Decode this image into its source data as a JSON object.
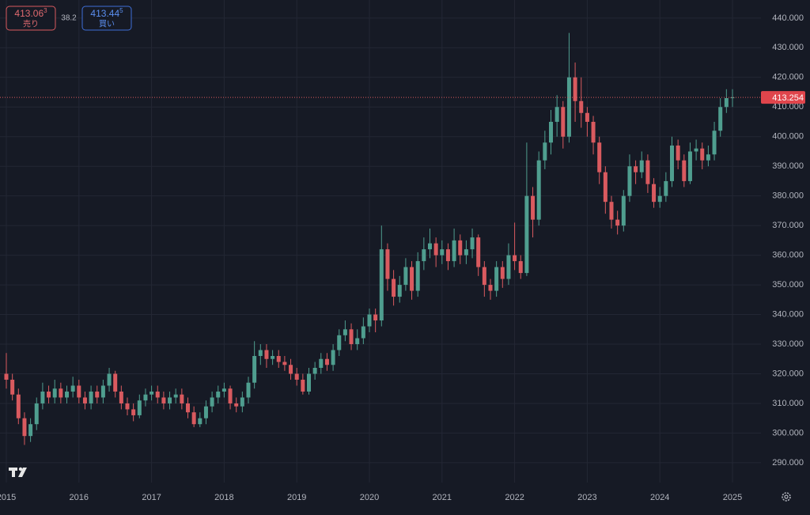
{
  "chart_data": {
    "type": "candlestick",
    "categories": [
      "2015",
      null,
      null,
      null,
      null,
      null,
      null,
      null,
      null,
      null,
      null,
      null,
      "2016",
      null,
      null,
      null,
      null,
      null,
      null,
      null,
      null,
      null,
      null,
      null,
      "2017",
      null,
      null,
      null,
      null,
      null,
      null,
      null,
      null,
      null,
      null,
      null,
      "2018",
      null,
      null,
      null,
      null,
      null,
      null,
      null,
      null,
      null,
      null,
      null,
      "2019",
      null,
      null,
      null,
      null,
      null,
      null,
      null,
      null,
      null,
      null,
      null,
      "2020",
      null,
      null,
      null,
      null,
      null,
      null,
      null,
      null,
      null,
      null,
      null,
      "2021",
      null,
      null,
      null,
      null,
      null,
      null,
      null,
      null,
      null,
      null,
      null,
      "2022",
      null,
      null,
      null,
      null,
      null,
      null,
      null,
      null,
      null,
      null,
      null,
      "2023",
      null,
      null,
      null,
      null,
      null,
      null,
      null,
      null,
      null,
      null,
      null,
      "2024",
      null,
      null,
      null,
      null,
      null,
      null,
      null,
      null,
      null,
      null,
      null,
      "2025"
    ],
    "open": [
      320,
      318,
      313,
      305,
      299,
      303,
      310,
      314,
      312,
      315,
      312,
      314,
      316,
      312,
      310,
      314,
      312,
      316,
      320,
      314,
      310,
      308,
      306,
      311,
      313,
      314,
      312,
      310,
      312,
      313,
      310,
      307,
      303,
      305,
      309,
      312,
      314,
      315,
      310,
      309,
      312,
      317,
      326,
      328,
      325,
      326,
      324,
      323,
      320,
      318,
      314,
      320,
      322,
      325,
      323,
      328,
      333,
      335,
      330,
      332,
      336,
      340,
      338,
      362,
      352,
      346,
      350,
      356,
      348,
      358,
      362,
      364,
      360,
      362,
      358,
      365,
      360,
      362,
      366,
      356,
      350,
      348,
      356,
      352,
      360,
      358,
      354,
      380,
      372,
      392,
      398,
      405,
      410,
      400,
      420,
      412,
      408,
      405,
      398,
      388,
      378,
      372,
      370,
      380,
      390,
      388,
      392,
      384,
      378,
      380,
      385,
      397,
      392,
      385,
      395,
      396,
      392,
      394,
      402,
      410,
      413
    ],
    "high": [
      327,
      320,
      315,
      307,
      305,
      312,
      317,
      316,
      318,
      317,
      316,
      319,
      318,
      314,
      316,
      316,
      318,
      322,
      321,
      316,
      312,
      310,
      313,
      315,
      316,
      316,
      314,
      314,
      315,
      315,
      312,
      309,
      307,
      311,
      314,
      316,
      317,
      316,
      312,
      314,
      319,
      331,
      330,
      330,
      328,
      328,
      326,
      325,
      322,
      320,
      322,
      324,
      327,
      327,
      330,
      335,
      338,
      337,
      335,
      339,
      342,
      342,
      370,
      364,
      355,
      353,
      359,
      358,
      361,
      366,
      369,
      366,
      365,
      364,
      369,
      367,
      365,
      369,
      367,
      358,
      352,
      358,
      358,
      364,
      371,
      360,
      398,
      383,
      395,
      402,
      409,
      414,
      412,
      435,
      425,
      420,
      410,
      407,
      400,
      390,
      380,
      375,
      382,
      394,
      392,
      395,
      394,
      386,
      383,
      388,
      400,
      399,
      394,
      398,
      399,
      398,
      397,
      405,
      413,
      416,
      416
    ],
    "low": [
      315,
      311,
      303,
      296,
      297,
      301,
      308,
      310,
      310,
      310,
      310,
      312,
      310,
      308,
      308,
      310,
      310,
      314,
      312,
      308,
      306,
      304,
      305,
      309,
      311,
      310,
      308,
      308,
      310,
      308,
      305,
      302,
      302,
      303,
      307,
      310,
      312,
      308,
      307,
      307,
      310,
      315,
      323,
      322,
      323,
      322,
      321,
      318,
      316,
      313,
      313,
      318,
      320,
      321,
      321,
      326,
      331,
      328,
      328,
      330,
      334,
      334,
      336,
      348,
      343,
      344,
      348,
      345,
      346,
      355,
      359,
      356,
      357,
      355,
      356,
      357,
      357,
      359,
      353,
      346,
      345,
      346,
      349,
      350,
      355,
      352,
      353,
      366,
      370,
      389,
      394,
      400,
      396,
      398,
      405,
      403,
      400,
      394,
      384,
      374,
      369,
      367,
      368,
      378,
      384,
      386,
      381,
      376,
      376,
      378,
      383,
      389,
      383,
      384,
      392,
      389,
      390,
      392,
      400,
      408,
      410
    ],
    "close": [
      318,
      313,
      305,
      299,
      303,
      310,
      314,
      312,
      315,
      312,
      314,
      316,
      312,
      310,
      314,
      312,
      316,
      320,
      314,
      310,
      308,
      306,
      311,
      313,
      314,
      312,
      310,
      312,
      313,
      310,
      307,
      303,
      305,
      309,
      312,
      314,
      315,
      310,
      309,
      312,
      317,
      326,
      328,
      325,
      326,
      324,
      323,
      320,
      318,
      314,
      320,
      322,
      325,
      323,
      328,
      333,
      335,
      330,
      332,
      336,
      340,
      338,
      362,
      352,
      346,
      350,
      356,
      348,
      358,
      362,
      364,
      360,
      362,
      358,
      365,
      360,
      362,
      366,
      356,
      350,
      348,
      356,
      352,
      360,
      358,
      354,
      380,
      372,
      392,
      398,
      405,
      410,
      400,
      420,
      412,
      408,
      405,
      398,
      388,
      378,
      372,
      370,
      380,
      390,
      388,
      392,
      384,
      378,
      380,
      385,
      397,
      392,
      385,
      395,
      396,
      392,
      394,
      402,
      410,
      413,
      413.254
    ],
    "up_color": "#4f9e8f",
    "down_color": "#d95a5f",
    "ylim": [
      283.3,
      446.1
    ],
    "yticks": [
      {
        "value": 290,
        "label": "290.000"
      },
      {
        "value": 300,
        "label": "300.000"
      },
      {
        "value": 310,
        "label": "310.000"
      },
      {
        "value": 320,
        "label": "320.000"
      },
      {
        "value": 330,
        "label": "330.000"
      },
      {
        "value": 340,
        "label": "340.000"
      },
      {
        "value": 350,
        "label": "350.000"
      },
      {
        "value": 360,
        "label": "360.000"
      },
      {
        "value": 370,
        "label": "370.000"
      },
      {
        "value": 380,
        "label": "380.000"
      },
      {
        "value": 390,
        "label": "390.000"
      },
      {
        "value": 400,
        "label": "400.000"
      },
      {
        "value": 410,
        "label": "410.000"
      },
      {
        "value": 420,
        "label": "420.000"
      },
      {
        "value": 430,
        "label": "430.000"
      },
      {
        "value": 440,
        "label": "440.000"
      }
    ],
    "last_price": 413.254,
    "grid": true
  },
  "trade_panel": {
    "sell": {
      "price": "413.06",
      "pip": "3",
      "label": "売り"
    },
    "spread": "38.2",
    "buy": {
      "price": "413.44",
      "pip": "5",
      "label": "買い"
    }
  }
}
